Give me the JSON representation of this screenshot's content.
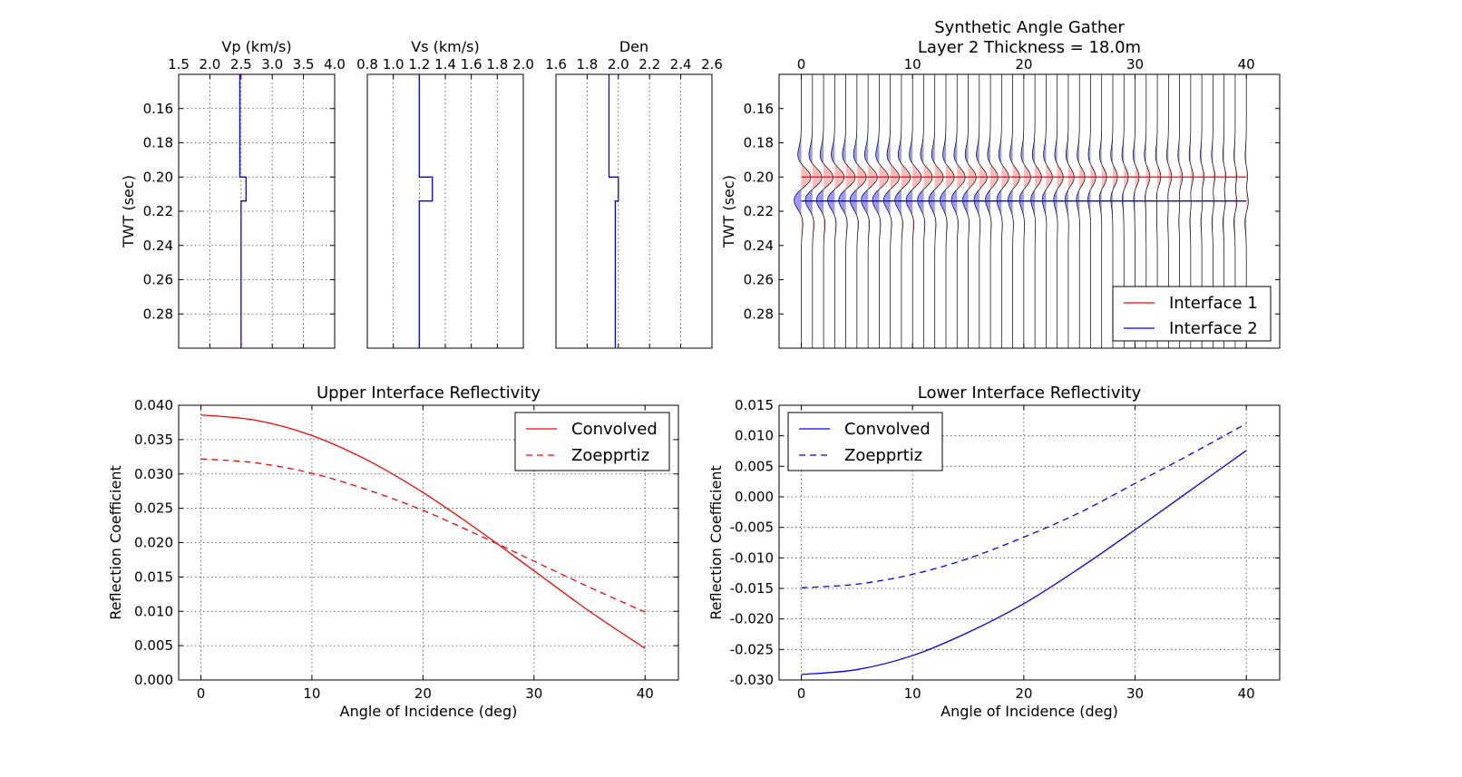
{
  "chart_data": [
    {
      "type": "line",
      "id": "vp",
      "title": "Vp (km/s)",
      "xlabel": "",
      "ylabel": "TWT (sec)",
      "xlim": [
        1.5,
        4.0
      ],
      "ylim": [
        0.14,
        0.3
      ],
      "xticks": [
        "1.5",
        "2.0",
        "2.5",
        "3.0",
        "3.5",
        "4.0"
      ],
      "yticks": [
        "0.16",
        "0.18",
        "0.20",
        "0.22",
        "0.24",
        "0.26",
        "0.28"
      ],
      "grid": true,
      "color": "#0000ff",
      "profile": [
        [
          2.48,
          0.14
        ],
        [
          2.48,
          0.2
        ],
        [
          2.58,
          0.2
        ],
        [
          2.58,
          0.214
        ],
        [
          2.5,
          0.214
        ],
        [
          2.5,
          0.3
        ]
      ]
    },
    {
      "type": "line",
      "id": "vs",
      "title": "Vs (km/s)",
      "xlabel": "",
      "ylabel": "",
      "xlim": [
        0.8,
        2.0
      ],
      "ylim": [
        0.14,
        0.3
      ],
      "xticks": [
        "0.8",
        "1.0",
        "1.2",
        "1.4",
        "1.6",
        "1.8",
        "2.0"
      ],
      "yticks": [],
      "grid": true,
      "color": "#0000ff",
      "profile": [
        [
          1.2,
          0.14
        ],
        [
          1.2,
          0.2
        ],
        [
          1.3,
          0.2
        ],
        [
          1.3,
          0.214
        ],
        [
          1.2,
          0.214
        ],
        [
          1.2,
          0.3
        ]
      ]
    },
    {
      "type": "line",
      "id": "den",
      "title": "Den",
      "xlabel": "",
      "ylabel": "",
      "xlim": [
        1.6,
        2.6
      ],
      "ylim": [
        0.14,
        0.3
      ],
      "xticks": [
        "1.6",
        "1.8",
        "2.0",
        "2.2",
        "2.4",
        "2.6"
      ],
      "yticks": [],
      "grid": true,
      "color": "#0000ff",
      "profile": [
        [
          1.94,
          0.14
        ],
        [
          1.94,
          0.2
        ],
        [
          2.0,
          0.2
        ],
        [
          2.0,
          0.214
        ],
        [
          1.98,
          0.214
        ],
        [
          1.98,
          0.3
        ]
      ]
    },
    {
      "type": "line",
      "id": "gather",
      "title": "Synthetic Angle Gather",
      "subtitle": "Layer 2 Thickness = 18.0m",
      "xlabel": "",
      "ylabel": "TWT (sec)",
      "xlim": [
        -2,
        43
      ],
      "ylim": [
        0.14,
        0.3
      ],
      "xticks": [
        "0",
        "10",
        "20",
        "30",
        "40"
      ],
      "yticks": [
        "0.16",
        "0.18",
        "0.20",
        "0.22",
        "0.24",
        "0.26",
        "0.28"
      ],
      "grid": false,
      "legend_position": "bottom-right",
      "trace_angles": [
        0,
        1,
        2,
        3,
        4,
        5,
        6,
        7,
        8,
        9,
        10,
        11,
        12,
        13,
        14,
        15,
        16,
        17,
        18,
        19,
        20,
        21,
        22,
        23,
        24,
        25,
        26,
        27,
        28,
        29,
        30,
        31,
        32,
        33,
        34,
        35,
        36,
        37,
        38,
        39,
        40
      ],
      "wavelet_frequency_hz": 30,
      "positive_fill": "#ffbbbb",
      "negative_fill": "#9999ff",
      "series": [
        {
          "name": "Interface 1",
          "color": "#ff0000",
          "twt": 0.2,
          "angle_range": [
            0,
            40
          ]
        },
        {
          "name": "Interface 2",
          "color": "#0000ff",
          "twt": 0.214,
          "angle_range": [
            0,
            40
          ]
        }
      ]
    },
    {
      "type": "line",
      "id": "upper",
      "title": "Upper Interface Reflectivity",
      "xlabel": "Angle of Incidence (deg)",
      "ylabel": "Reflection Coefficient",
      "xlim": [
        -2,
        43
      ],
      "ylim": [
        0.0,
        0.04
      ],
      "xticks": [
        "0",
        "10",
        "20",
        "30",
        "40"
      ],
      "yticks": [
        "0.000",
        "0.005",
        "0.010",
        "0.015",
        "0.020",
        "0.025",
        "0.030",
        "0.035",
        "0.040"
      ],
      "grid": true,
      "legend_position": "top-right",
      "x": [
        0,
        5,
        10,
        15,
        20,
        25,
        30,
        35,
        40
      ],
      "series": [
        {
          "name": "Convolved",
          "color": "#ff0000",
          "dash": "solid",
          "values": [
            0.0386,
            0.0378,
            0.0356,
            0.032,
            0.0273,
            0.0218,
            0.0159,
            0.01,
            0.0046
          ]
        },
        {
          "name": "Zoepprtiz",
          "color": "#ff0000",
          "dash": "dashed",
          "values": [
            0.0322,
            0.0316,
            0.0301,
            0.0277,
            0.0247,
            0.0211,
            0.0173,
            0.0135,
            0.0099
          ]
        }
      ]
    },
    {
      "type": "line",
      "id": "lower",
      "title": "Lower Interface Reflectivity",
      "xlabel": "Angle of Incidence (deg)",
      "ylabel": "Reflection Coefficient",
      "xlim": [
        -2,
        43
      ],
      "ylim": [
        -0.03,
        0.015
      ],
      "xticks": [
        "0",
        "10",
        "20",
        "30",
        "40"
      ],
      "yticks": [
        "-0.030",
        "-0.025",
        "-0.020",
        "-0.015",
        "-0.010",
        "-0.005",
        "0.000",
        "0.005",
        "0.010",
        "0.015"
      ],
      "grid": true,
      "legend_position": "top-left",
      "x": [
        0,
        5,
        10,
        15,
        20,
        25,
        30,
        35,
        40
      ],
      "series": [
        {
          "name": "Convolved",
          "color": "#0000ff",
          "dash": "solid",
          "values": [
            -0.0291,
            -0.0283,
            -0.026,
            -0.0222,
            -0.0175,
            -0.0117,
            -0.0054,
            0.0011,
            0.0076
          ]
        },
        {
          "name": "Zoepprtiz",
          "color": "#0000ff",
          "dash": "dashed",
          "values": [
            -0.0149,
            -0.0143,
            -0.0127,
            -0.0101,
            -0.0066,
            -0.0026,
            0.0022,
            0.007,
            0.012
          ]
        }
      ]
    }
  ]
}
